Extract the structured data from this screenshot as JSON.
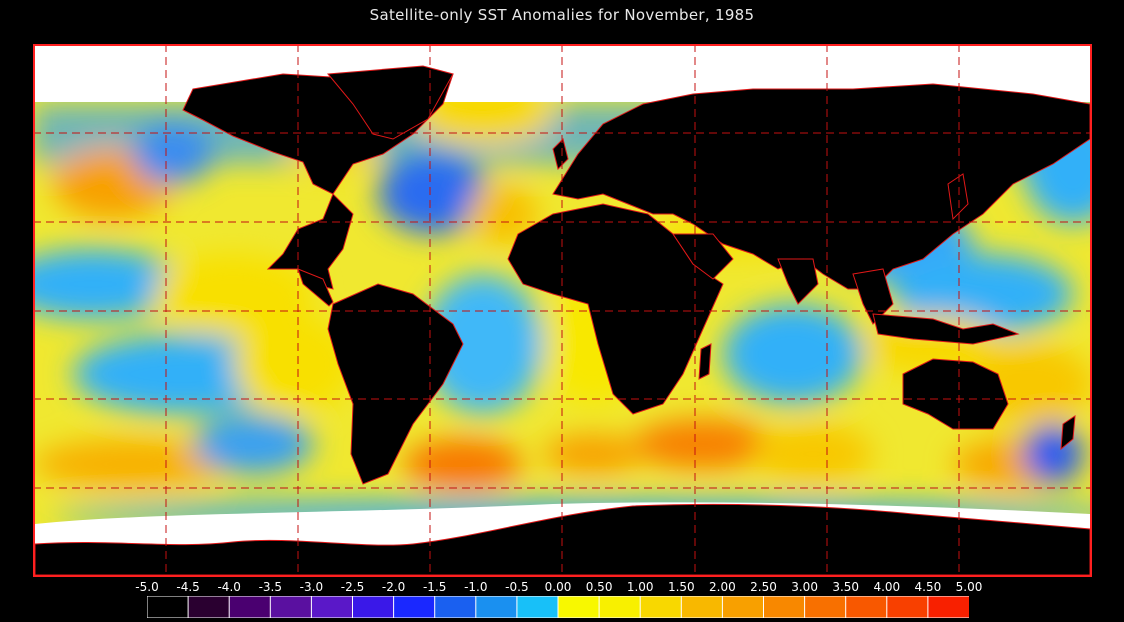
{
  "title": "Satellite-only SST Anomalies for November, 1985",
  "colors": {
    "background": "#000000",
    "frame": "#ff2020",
    "land": "#000000",
    "ice": "#ffffff",
    "grid": "#c41010"
  },
  "legend": {
    "ticks": [
      "-5.0",
      "-4.5",
      "-4.0",
      "-3.5",
      "-3.0",
      "-2.5",
      "-2.0",
      "-1.5",
      "-1.0",
      "-0.5",
      "0.00",
      "0.50",
      "1.00",
      "1.50",
      "2.00",
      "2.50",
      "3.00",
      "3.50",
      "4.00",
      "4.50",
      "5.00"
    ],
    "colors": [
      "#000000",
      "#2a0030",
      "#4a0070",
      "#5a10a0",
      "#5a18c8",
      "#3a18e8",
      "#1a28ff",
      "#1a60f0",
      "#1a90f0",
      "#18c0f8",
      "#f8f800",
      "#f8f000",
      "#f8d800",
      "#f8b800",
      "#f8a000",
      "#f88800",
      "#f87000",
      "#f85800",
      "#f84000",
      "#f82000"
    ]
  }
}
